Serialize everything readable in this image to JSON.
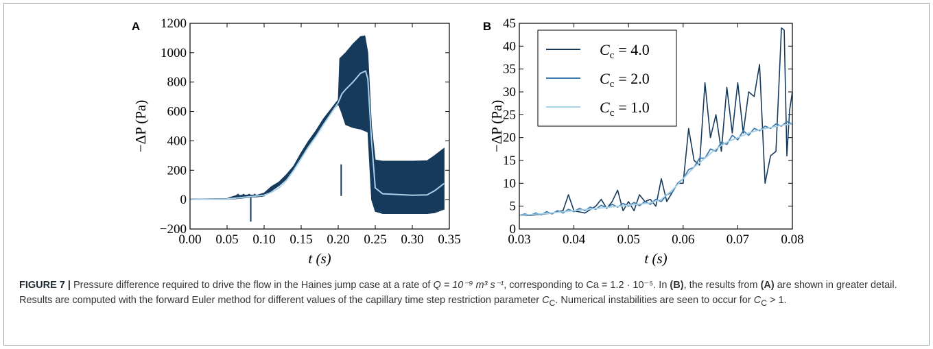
{
  "chart_data": [
    {
      "type": "area",
      "panel_label": "A",
      "xlabel": "t (s)",
      "ylabel": "−ΔP (Pa)",
      "xlim": [
        0.0,
        0.35
      ],
      "ylim": [
        -200,
        1200
      ],
      "xticks": [
        "0.00",
        "0.05",
        "0.10",
        "0.15",
        "0.20",
        "0.25",
        "0.30",
        "0.35"
      ],
      "yticks": [
        "−200",
        "0",
        "200",
        "400",
        "600",
        "800",
        "1000",
        "1200"
      ],
      "grid": false,
      "series": [
        {
          "name": "C_c = 4.0",
          "color": "#163a5c",
          "band_upper": [
            [
              0.0,
              5
            ],
            [
              0.05,
              8
            ],
            [
              0.06,
              25
            ],
            [
              0.07,
              30
            ],
            [
              0.08,
              32
            ],
            [
              0.09,
              30
            ],
            [
              0.1,
              45
            ],
            [
              0.11,
              90
            ],
            [
              0.12,
              120
            ],
            [
              0.13,
              170
            ],
            [
              0.14,
              230
            ],
            [
              0.15,
              320
            ],
            [
              0.16,
              400
            ],
            [
              0.17,
              470
            ],
            [
              0.18,
              550
            ],
            [
              0.19,
              615
            ],
            [
              0.2,
              680
            ],
            [
              0.202,
              960
            ],
            [
              0.21,
              1000
            ],
            [
              0.22,
              1060
            ],
            [
              0.23,
              1110
            ],
            [
              0.236,
              1115
            ],
            [
              0.24,
              1000
            ],
            [
              0.245,
              500
            ],
            [
              0.25,
              270
            ],
            [
              0.26,
              262
            ],
            [
              0.3,
              262
            ],
            [
              0.32,
              265
            ],
            [
              0.33,
              300
            ],
            [
              0.343,
              350
            ]
          ],
          "band_lower": [
            [
              0.0,
              0
            ],
            [
              0.05,
              2
            ],
            [
              0.06,
              5
            ],
            [
              0.07,
              10
            ],
            [
              0.08,
              15
            ],
            [
              0.09,
              18
            ],
            [
              0.1,
              25
            ],
            [
              0.11,
              60
            ],
            [
              0.12,
              95
            ],
            [
              0.13,
              140
            ],
            [
              0.14,
              205
            ],
            [
              0.15,
              290
            ],
            [
              0.16,
              370
            ],
            [
              0.17,
              440
            ],
            [
              0.18,
              520
            ],
            [
              0.19,
              590
            ],
            [
              0.2,
              650
            ],
            [
              0.204,
              600
            ],
            [
              0.21,
              510
            ],
            [
              0.22,
              490
            ],
            [
              0.23,
              480
            ],
            [
              0.24,
              460
            ],
            [
              0.245,
              0
            ],
            [
              0.25,
              -80
            ],
            [
              0.26,
              -95
            ],
            [
              0.3,
              -95
            ],
            [
              0.32,
              -95
            ],
            [
              0.33,
              -90
            ],
            [
              0.343,
              -65
            ]
          ],
          "spikes": [
            [
              0.082,
              -150
            ],
            [
              0.204,
              240
            ]
          ]
        },
        {
          "name": "C_c = 1.0",
          "color": "#a8d0e6",
          "points": [
            [
              0.0,
              2
            ],
            [
              0.05,
              5
            ],
            [
              0.08,
              20
            ],
            [
              0.1,
              30
            ],
            [
              0.11,
              50
            ],
            [
              0.12,
              80
            ],
            [
              0.13,
              130
            ],
            [
              0.14,
              200
            ],
            [
              0.15,
              280
            ],
            [
              0.16,
              360
            ],
            [
              0.17,
              430
            ],
            [
              0.18,
              510
            ],
            [
              0.19,
              585
            ],
            [
              0.2,
              660
            ],
            [
              0.205,
              720
            ],
            [
              0.21,
              750
            ],
            [
              0.22,
              800
            ],
            [
              0.23,
              860
            ],
            [
              0.237,
              875
            ],
            [
              0.24,
              820
            ],
            [
              0.245,
              400
            ],
            [
              0.25,
              80
            ],
            [
              0.26,
              40
            ],
            [
              0.3,
              30
            ],
            [
              0.32,
              32
            ],
            [
              0.33,
              60
            ],
            [
              0.343,
              110
            ]
          ]
        }
      ]
    },
    {
      "type": "line",
      "panel_label": "B",
      "xlabel": "t (s)",
      "ylabel": "−ΔP (Pa)",
      "xlim": [
        0.03,
        0.08
      ],
      "ylim": [
        0,
        45
      ],
      "xticks": [
        "0.03",
        "0.04",
        "0.05",
        "0.06",
        "0.07",
        "0.08"
      ],
      "yticks": [
        "0",
        "5",
        "10",
        "15",
        "20",
        "25",
        "30",
        "35",
        "40",
        "45"
      ],
      "grid": false,
      "legend": "top-left",
      "series": [
        {
          "name": "C_c = 4.0",
          "color": "#163a5c",
          "points": [
            [
              0.03,
              3
            ],
            [
              0.032,
              3
            ],
            [
              0.034,
              3.2
            ],
            [
              0.036,
              3.5
            ],
            [
              0.038,
              4
            ],
            [
              0.039,
              7.5
            ],
            [
              0.04,
              4
            ],
            [
              0.042,
              3.5
            ],
            [
              0.044,
              5
            ],
            [
              0.045,
              6.5
            ],
            [
              0.046,
              4.5
            ],
            [
              0.047,
              6
            ],
            [
              0.048,
              8.5
            ],
            [
              0.049,
              4
            ],
            [
              0.05,
              6
            ],
            [
              0.051,
              4
            ],
            [
              0.052,
              7.5
            ],
            [
              0.053,
              6
            ],
            [
              0.054,
              6.5
            ],
            [
              0.055,
              5
            ],
            [
              0.056,
              11
            ],
            [
              0.057,
              6
            ],
            [
              0.058,
              8
            ],
            [
              0.059,
              10
            ],
            [
              0.06,
              10
            ],
            [
              0.061,
              22
            ],
            [
              0.062,
              15
            ],
            [
              0.063,
              14
            ],
            [
              0.064,
              32
            ],
            [
              0.065,
              20
            ],
            [
              0.066,
              25
            ],
            [
              0.067,
              17
            ],
            [
              0.068,
              31
            ],
            [
              0.069,
              21
            ],
            [
              0.07,
              32
            ],
            [
              0.071,
              21
            ],
            [
              0.072,
              30
            ],
            [
              0.073,
              29
            ],
            [
              0.074,
              36
            ],
            [
              0.075,
              10
            ],
            [
              0.076,
              16
            ],
            [
              0.077,
              17
            ],
            [
              0.078,
              44
            ],
            [
              0.0785,
              43.5
            ],
            [
              0.079,
              16
            ],
            [
              0.0795,
              26
            ],
            [
              0.08,
              30
            ]
          ]
        },
        {
          "name": "C_c = 2.0",
          "color": "#3b7bb0",
          "points": [
            [
              0.03,
              3
            ],
            [
              0.031,
              3.3
            ],
            [
              0.032,
              3
            ],
            [
              0.033,
              3.5
            ],
            [
              0.034,
              3.1
            ],
            [
              0.035,
              3.8
            ],
            [
              0.036,
              3.3
            ],
            [
              0.037,
              4
            ],
            [
              0.038,
              3.5
            ],
            [
              0.039,
              4.3
            ],
            [
              0.04,
              3.8
            ],
            [
              0.041,
              4.5
            ],
            [
              0.042,
              4
            ],
            [
              0.043,
              4.8
            ],
            [
              0.044,
              4.3
            ],
            [
              0.045,
              5.2
            ],
            [
              0.046,
              4.6
            ],
            [
              0.047,
              5.4
            ],
            [
              0.048,
              4.8
            ],
            [
              0.049,
              5.6
            ],
            [
              0.05,
              5
            ],
            [
              0.051,
              5.8
            ],
            [
              0.052,
              5.1
            ],
            [
              0.053,
              6
            ],
            [
              0.054,
              5.4
            ],
            [
              0.055,
              6.5
            ],
            [
              0.056,
              6
            ],
            [
              0.057,
              7.5
            ],
            [
              0.058,
              8
            ],
            [
              0.059,
              10
            ],
            [
              0.06,
              11
            ],
            [
              0.061,
              13
            ],
            [
              0.062,
              13.5
            ],
            [
              0.063,
              15.5
            ],
            [
              0.064,
              15.5
            ],
            [
              0.065,
              17.5
            ],
            [
              0.066,
              17
            ],
            [
              0.067,
              19
            ],
            [
              0.068,
              18.5
            ],
            [
              0.069,
              20.5
            ],
            [
              0.07,
              19.5
            ],
            [
              0.071,
              21.5
            ],
            [
              0.072,
              20.5
            ],
            [
              0.073,
              22
            ],
            [
              0.074,
              21.5
            ],
            [
              0.075,
              22.5
            ],
            [
              0.076,
              22
            ],
            [
              0.077,
              23
            ],
            [
              0.078,
              22.5
            ],
            [
              0.079,
              23.5
            ],
            [
              0.08,
              23
            ]
          ]
        },
        {
          "name": "C_c = 1.0",
          "color": "#a8d0e6",
          "points": [
            [
              0.03,
              3
            ],
            [
              0.035,
              3.4
            ],
            [
              0.04,
              4
            ],
            [
              0.045,
              4.6
            ],
            [
              0.05,
              5.2
            ],
            [
              0.054,
              5.7
            ],
            [
              0.056,
              6.5
            ],
            [
              0.058,
              8.5
            ],
            [
              0.06,
              11
            ],
            [
              0.062,
              13.5
            ],
            [
              0.064,
              15.5
            ],
            [
              0.066,
              17.5
            ],
            [
              0.068,
              19
            ],
            [
              0.07,
              20
            ],
            [
              0.072,
              21
            ],
            [
              0.074,
              21.7
            ],
            [
              0.076,
              22.2
            ],
            [
              0.078,
              22.7
            ],
            [
              0.08,
              23
            ]
          ]
        }
      ]
    }
  ],
  "legend_items": [
    {
      "label": "= 4.0",
      "color": "#163a5c"
    },
    {
      "label": "= 2.0",
      "color": "#3b7bb0"
    },
    {
      "label": "= 1.0",
      "color": "#a8d0e6"
    }
  ],
  "caption": {
    "label": "FIGURE 7 |",
    "p1": " Pressure difference required to drive the flow in the Haines jump case at a rate of ",
    "q_math": "Q = 10⁻⁹ m³ s⁻¹",
    "p2": ", corresponding to ",
    "ca_math": "Ca = 1.2 · 10⁻⁵",
    "p3": ". In ",
    "ref_b": "(B)",
    "p4": ", the results from ",
    "ref_a": "(A)",
    "p5": " are shown in greater detail. Results are computed with the forward Euler method for different values of the capillary time step restriction parameter ",
    "cc": "C",
    "cc_sub": "C",
    "p6": ". Numerical instabilities are seen to occur for ",
    "cc2": "C",
    "cc2_sub": "C",
    "p7": " > 1."
  }
}
